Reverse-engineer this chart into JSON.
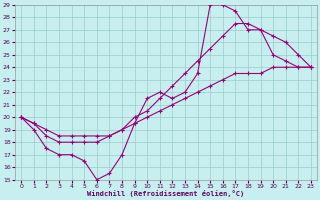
{
  "xlabel": "Windchill (Refroidissement éolien,°C)",
  "xlim": [
    -0.5,
    23.5
  ],
  "ylim": [
    15,
    29
  ],
  "xticks": [
    0,
    1,
    2,
    3,
    4,
    5,
    6,
    7,
    8,
    9,
    10,
    11,
    12,
    13,
    14,
    15,
    16,
    17,
    18,
    19,
    20,
    21,
    22,
    23
  ],
  "yticks": [
    15,
    16,
    17,
    18,
    19,
    20,
    21,
    22,
    23,
    24,
    25,
    26,
    27,
    28,
    29
  ],
  "bg_color": "#c8efef",
  "line_color": "#990077",
  "grid_color": "#99cccc",
  "line1_x": [
    0,
    1,
    2,
    3,
    4,
    5,
    6,
    7,
    8,
    9,
    10,
    11,
    12,
    13,
    14,
    15,
    16,
    17,
    18,
    19,
    20,
    21,
    22,
    23
  ],
  "line1_y": [
    20,
    19,
    17.5,
    17,
    17,
    16.5,
    15.0,
    15.5,
    17.0,
    19.5,
    21.5,
    22.0,
    21.5,
    22.0,
    23.5,
    29.0,
    29.0,
    28.5,
    27.0,
    27.0,
    25.0,
    24.5,
    24.0,
    24.0
  ],
  "line2_x": [
    0,
    1,
    2,
    3,
    4,
    5,
    6,
    7,
    8,
    9,
    10,
    11,
    12,
    13,
    14,
    15,
    16,
    17,
    18,
    19,
    20,
    21,
    22,
    23
  ],
  "line2_y": [
    20,
    19.5,
    18.5,
    18.0,
    18.0,
    18.0,
    18.0,
    18.5,
    19.0,
    20.0,
    20.5,
    21.5,
    22.5,
    23.5,
    24.5,
    25.5,
    26.5,
    27.5,
    27.5,
    27.0,
    26.5,
    26.0,
    25.0,
    24.0
  ],
  "line3_x": [
    0,
    1,
    2,
    3,
    4,
    5,
    6,
    7,
    8,
    9,
    10,
    11,
    12,
    13,
    14,
    15,
    16,
    17,
    18,
    19,
    20,
    21,
    22,
    23
  ],
  "line3_y": [
    20,
    19.5,
    19.0,
    18.5,
    18.5,
    18.5,
    18.5,
    18.5,
    19.0,
    19.5,
    20.0,
    20.5,
    21.0,
    21.5,
    22.0,
    22.5,
    23.0,
    23.5,
    23.5,
    23.5,
    24.0,
    24.0,
    24.0,
    24.0
  ]
}
